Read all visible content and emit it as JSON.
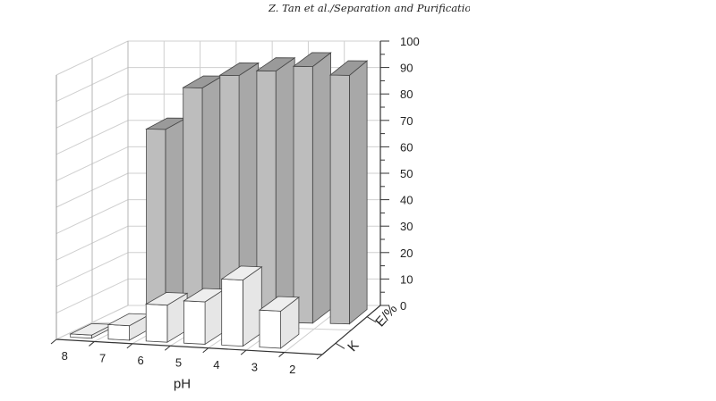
{
  "header": {
    "running_title": "Z. Tan et al./Separation and Purification"
  },
  "chart_data": {
    "type": "bar",
    "variant": "3d-grouped-bar",
    "categories": [
      "8",
      "7",
      "6",
      "5",
      "4",
      "3",
      "2"
    ],
    "series": [
      {
        "name": "K",
        "values": [
          1.2,
          5.5,
          14,
          16,
          25,
          14,
          0
        ]
      },
      {
        "name": "E/%",
        "values": [
          0,
          72,
          88,
          93,
          95,
          97,
          94
        ]
      }
    ],
    "xlabel": "pH",
    "zlabel_front": "K",
    "zlabel_back": "E/%",
    "ylim": [
      0,
      100
    ],
    "yticks": [
      "0",
      "10",
      "20",
      "30",
      "40",
      "50",
      "60",
      "70",
      "80",
      "90",
      "100"
    ],
    "grid": true,
    "colors": {
      "front_bars": "#ffffff",
      "back_bars": "#bdbdbd",
      "back_bar_top": "#9a9a9a",
      "grid": "#cfcfcf",
      "axis": "#333333"
    }
  }
}
